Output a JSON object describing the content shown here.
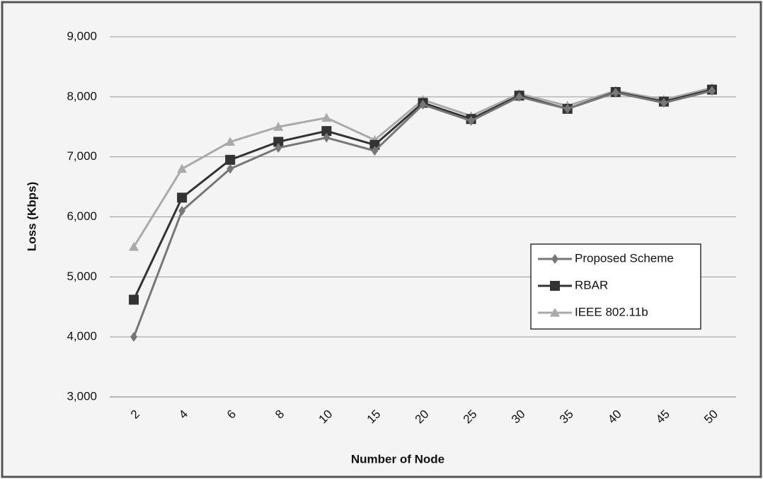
{
  "chart_data": {
    "type": "line",
    "y_label": "Loss (Kbps)",
    "x_label": "Number of Node",
    "categories": [
      "2",
      "4",
      "6",
      "8",
      "10",
      "15",
      "20",
      "25",
      "30",
      "35",
      "40",
      "45",
      "50"
    ],
    "ylim": [
      3000,
      9000
    ],
    "yticks": [
      {
        "value": 3000,
        "label": "3,000"
      },
      {
        "value": 4000,
        "label": "4,000"
      },
      {
        "value": 5000,
        "label": "5,000"
      },
      {
        "value": 6000,
        "label": "6,000"
      },
      {
        "value": 7000,
        "label": "7,000"
      },
      {
        "value": 8000,
        "label": "8,000"
      },
      {
        "value": 9000,
        "label": "9,000"
      }
    ],
    "grid": true,
    "series": [
      {
        "name": "Proposed Scheme",
        "color": "#777777",
        "marker": "diamond",
        "values": [
          4000,
          6100,
          6800,
          7150,
          7320,
          7100,
          7870,
          7600,
          8000,
          7800,
          8070,
          7900,
          8100
        ]
      },
      {
        "name": "RBAR",
        "color": "#333333",
        "marker": "square",
        "values": [
          4620,
          6320,
          6950,
          7250,
          7430,
          7200,
          7900,
          7630,
          8020,
          7800,
          8080,
          7920,
          8120
        ]
      },
      {
        "name": "IEEE 802.11b",
        "color": "#aaaaaa",
        "marker": "triangle",
        "values": [
          5500,
          6800,
          7250,
          7500,
          7650,
          7280,
          7950,
          7680,
          8050,
          7850,
          8100,
          7950,
          8150
        ]
      }
    ]
  }
}
